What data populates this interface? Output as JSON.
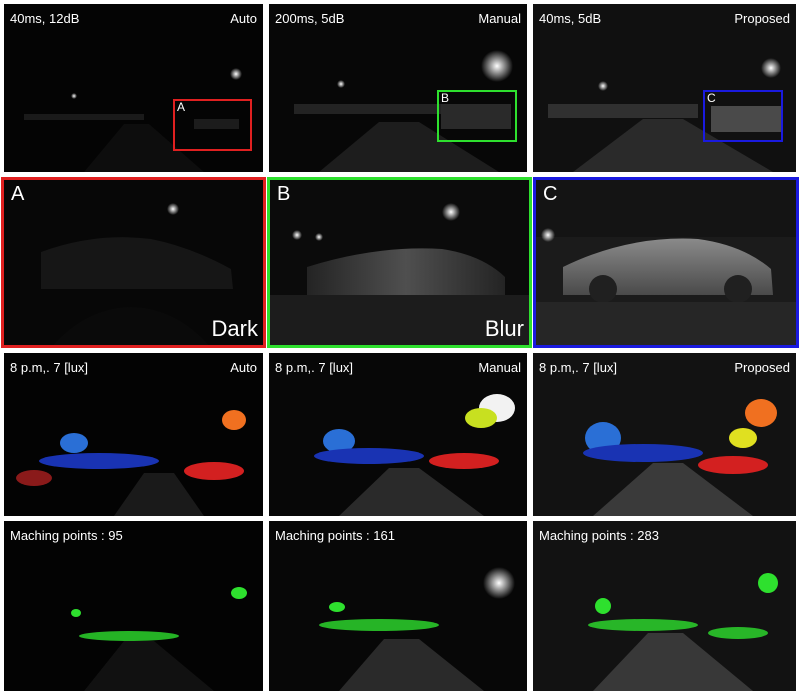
{
  "colors": {
    "box_a": "#e02020",
    "box_b": "#2ee02e",
    "box_c": "#1a1adf"
  },
  "row1": {
    "auto": {
      "setting": "40ms, 12dB",
      "mode": "Auto",
      "box_letter": "A"
    },
    "manual": {
      "setting": "200ms, 5dB",
      "mode": "Manual",
      "box_letter": "B"
    },
    "proposed": {
      "setting": "40ms, 5dB",
      "mode": "Proposed",
      "box_letter": "C"
    }
  },
  "row2": {
    "a": {
      "letter": "A",
      "word": "Dark"
    },
    "b": {
      "letter": "B",
      "word": "Blur"
    },
    "c": {
      "letter": "C",
      "word": ""
    }
  },
  "row3": {
    "auto": {
      "condition": "8 p.m,. 7 [lux]",
      "mode": "Auto"
    },
    "manual": {
      "condition": "8 p.m,. 7 [lux]",
      "mode": "Manual"
    },
    "proposed": {
      "condition": "8 p.m,. 7 [lux]",
      "mode": "Proposed"
    }
  },
  "row4": {
    "auto": {
      "matching": "Maching points : 95"
    },
    "manual": {
      "matching": "Maching points : 161"
    },
    "proposed": {
      "matching": "Maching points : 283"
    }
  }
}
